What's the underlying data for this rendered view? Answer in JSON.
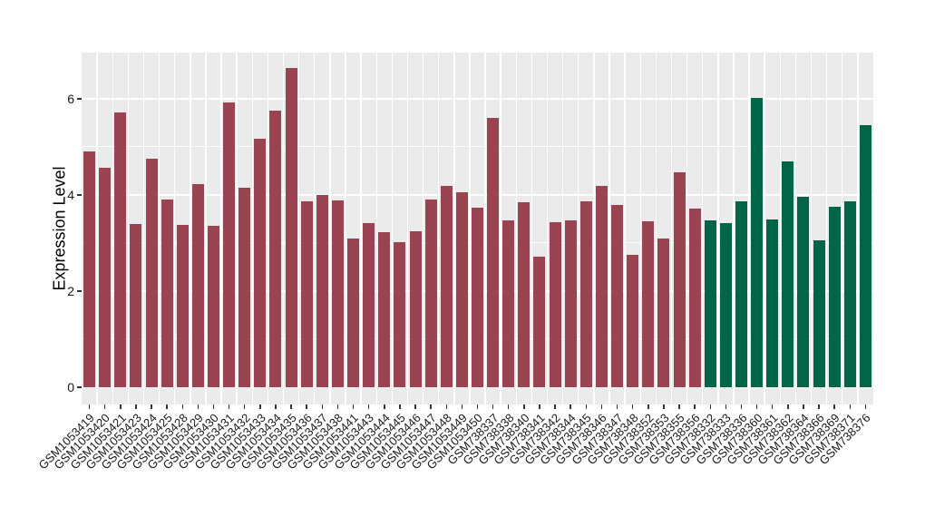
{
  "chart_data": {
    "type": "bar",
    "title": "",
    "xlabel": "",
    "ylabel": "Expression Level",
    "ylim": [
      0,
      6.96
    ],
    "yticks": [
      "0",
      "2",
      "4",
      "6"
    ],
    "ytick_values": [
      0,
      2,
      4,
      6
    ],
    "minor_grid_values": [
      1,
      3,
      5
    ],
    "grid": "horizontal major+minor white lines on gray panel, vertical white lines between categories",
    "legend_position": "none",
    "categories": [
      "GSM1053419",
      "GSM1053420",
      "GSM1053421",
      "GSM1053423",
      "GSM1053424",
      "GSM1053425",
      "GSM1053428",
      "GSM1053429",
      "GSM1053430",
      "GSM1053431",
      "GSM1053432",
      "GSM1053433",
      "GSM1053434",
      "GSM1053435",
      "GSM1053436",
      "GSM1053437",
      "GSM1053438",
      "GSM1053441",
      "GSM1053443",
      "GSM1053444",
      "GSM1053445",
      "GSM1053446",
      "GSM1053447",
      "GSM1053448",
      "GSM1053449",
      "GSM1053450",
      "GSM738337",
      "GSM738338",
      "GSM738340",
      "GSM738341",
      "GSM738342",
      "GSM738344",
      "GSM738345",
      "GSM738346",
      "GSM738347",
      "GSM738348",
      "GSM738352",
      "GSM738353",
      "GSM738355",
      "GSM738356",
      "GSM738332",
      "GSM738333",
      "GSM738336",
      "GSM738360",
      "GSM738361",
      "GSM738362",
      "GSM738364",
      "GSM738366",
      "GSM738369",
      "GSM738371",
      "GSM738376"
    ],
    "values": [
      4.9,
      4.56,
      5.72,
      3.4,
      4.76,
      3.9,
      3.37,
      4.22,
      3.35,
      5.92,
      4.15,
      5.17,
      5.75,
      6.65,
      3.87,
      4.0,
      3.88,
      3.1,
      3.42,
      3.22,
      3.02,
      3.25,
      3.91,
      4.18,
      4.06,
      3.74,
      5.61,
      3.48,
      3.84,
      2.72,
      3.44,
      3.47,
      3.86,
      4.18,
      3.8,
      2.75,
      3.45,
      3.1,
      4.48,
      3.72,
      3.48,
      3.42,
      3.87,
      6.01,
      3.5,
      4.7,
      3.97,
      3.05,
      3.76,
      3.87,
      5.45
    ],
    "groups": [
      "group1",
      "group1",
      "group1",
      "group1",
      "group1",
      "group1",
      "group1",
      "group1",
      "group1",
      "group1",
      "group1",
      "group1",
      "group1",
      "group1",
      "group1",
      "group1",
      "group1",
      "group1",
      "group1",
      "group1",
      "group1",
      "group1",
      "group1",
      "group1",
      "group1",
      "group1",
      "group1",
      "group1",
      "group1",
      "group1",
      "group1",
      "group1",
      "group1",
      "group1",
      "group1",
      "group1",
      "group1",
      "group1",
      "group1",
      "group1",
      "group2",
      "group2",
      "group2",
      "group2",
      "group2",
      "group2",
      "group2",
      "group2",
      "group2",
      "group2",
      "group2"
    ],
    "group_colors": {
      "group1": "#9a4351",
      "group2": "#016648"
    }
  },
  "colors": {
    "panel_background": "#ebebeb",
    "gridline": "#ffffff",
    "figure_background": "#ffffff",
    "axis_text": "#1a1a1a",
    "tick_mark": "#333333"
  }
}
